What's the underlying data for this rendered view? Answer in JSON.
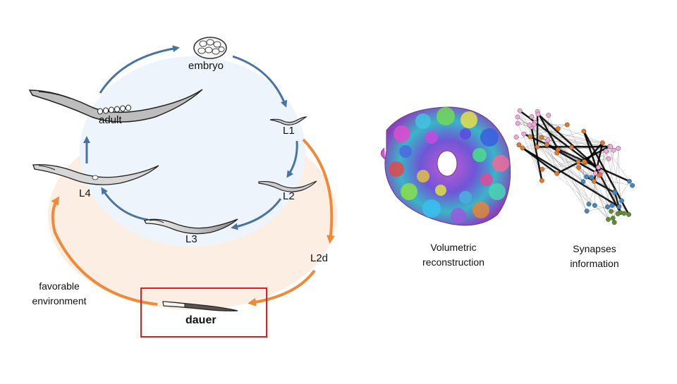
{
  "lifecycle": {
    "stages": {
      "embryo": "embryo",
      "l1": "L1",
      "l2": "L2",
      "l3": "L3",
      "l4": "L4",
      "adult": "adult",
      "l2d": "L2d",
      "dauer": "dauer"
    },
    "favorable_environment": [
      "favorable",
      "environment"
    ],
    "highlighted_stage": "dauer"
  },
  "panels": {
    "volumetric": [
      "Volumetric",
      "reconstruction"
    ],
    "synapses": [
      "Synapses",
      "information"
    ]
  },
  "colors": {
    "blue_arrow": "#4a74a0",
    "orange_arrow": "#ee8a3c",
    "blue_fill": "#eef4fb",
    "orange_fill": "#fdeee4",
    "highlight_box": "#e02020",
    "node_orange": "#e07a2e",
    "node_blue": "#3f88c5",
    "node_pink": "#f2a7d8",
    "node_green": "#5e8f2e"
  },
  "icons": [
    "embryo-icon",
    "worm-icon",
    "brain-mesh-image",
    "synapse-network-image"
  ]
}
